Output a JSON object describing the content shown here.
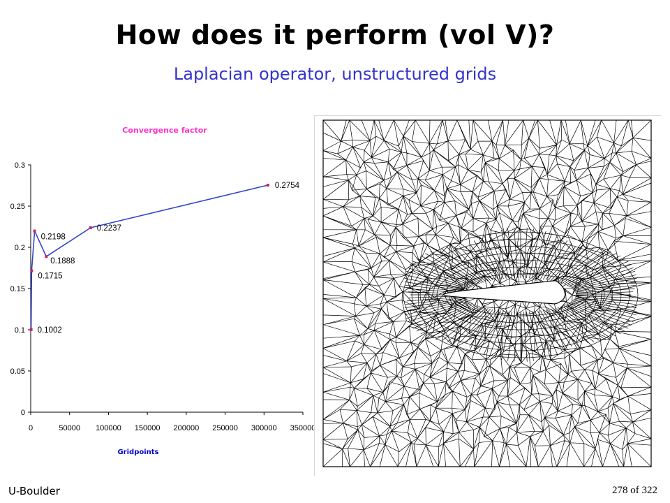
{
  "slide": {
    "title": "How does it perform (vol V)?",
    "subtitle": "Laplacian operator, unstructured grids",
    "footer_left": "U-Boulder",
    "footer_right": "278 of 322"
  },
  "chart_data": {
    "type": "line",
    "title": "Convergence factor",
    "xlabel": "Gridpoints",
    "ylabel": "",
    "xlim": [
      0,
      350000
    ],
    "ylim": [
      0,
      0.3
    ],
    "x_ticks": [
      "0",
      "50000",
      "100000",
      "150000",
      "200000",
      "250000",
      "300000",
      "350000"
    ],
    "y_ticks": [
      "0",
      "0.05",
      "0.1",
      "0.15",
      "0.2",
      "0.25",
      "0.3"
    ],
    "grid": false,
    "series": [
      {
        "x": [
          545,
          1200,
          5000,
          20000,
          77000,
          305000
        ],
        "values": [
          0.1002,
          0.1715,
          0.2198,
          0.1888,
          0.2237,
          0.2754
        ],
        "labels": [
          "0.1002",
          "0.1715",
          "0.2198",
          "0.1888",
          "0.2237",
          "0.2754"
        ],
        "line_color": "#3344cc",
        "marker_color": "#cc2266"
      }
    ]
  },
  "mesh": {
    "icon": "airfoil-unstructured-mesh-icon",
    "line_color": "#000000"
  }
}
